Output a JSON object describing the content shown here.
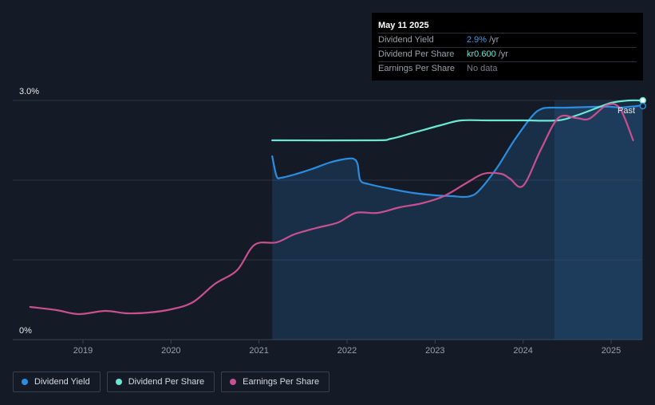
{
  "tooltip": {
    "date": "May 11 2025",
    "rows": [
      {
        "label": "Dividend Yield",
        "value": "2.9%",
        "unit": "/yr",
        "color": "#3a9bea"
      },
      {
        "label": "Dividend Per Share",
        "value": "kr0.600",
        "unit": "/yr",
        "color": "#6ee6d4"
      },
      {
        "label": "Earnings Per Share",
        "value": "No data",
        "unit": "",
        "color": "#7a7f88"
      }
    ]
  },
  "past_label": "Past",
  "legend": [
    {
      "label": "Dividend Yield",
      "color": "#2b8de0"
    },
    {
      "label": "Dividend Per Share",
      "color": "#6ee6d4"
    },
    {
      "label": "Earnings Per Share",
      "color": "#c8508f"
    }
  ],
  "chart_data": {
    "type": "line",
    "xlim": [
      2018.4,
      2025.4
    ],
    "ylim": [
      0,
      3.0
    ],
    "y_ticks": [
      {
        "value": 0,
        "label": "0%"
      },
      {
        "value": 3.0,
        "label": "3.0%"
      }
    ],
    "x_ticks": [
      2019,
      2020,
      2021,
      2022,
      2023,
      2024,
      2025
    ],
    "past_region_start": 2024.36,
    "series": [
      {
        "name": "Dividend Yield",
        "color": "#2b8de0",
        "fill": true,
        "x": [
          2021.15,
          2021.2,
          2021.25,
          2021.4,
          2021.6,
          2021.8,
          2021.95,
          2022.07,
          2022.12,
          2022.15,
          2022.25,
          2022.5,
          2022.75,
          2023.0,
          2023.2,
          2023.3,
          2023.4,
          2023.5,
          2023.7,
          2023.9,
          2024.1,
          2024.2,
          2024.3,
          2024.5,
          2024.8,
          2025.0,
          2025.1,
          2025.2,
          2025.3,
          2025.36
        ],
        "y": [
          2.3,
          2.05,
          2.03,
          2.07,
          2.14,
          2.22,
          2.26,
          2.27,
          2.2,
          2.0,
          1.95,
          1.89,
          1.84,
          1.81,
          1.8,
          1.79,
          1.8,
          1.87,
          2.15,
          2.5,
          2.8,
          2.89,
          2.91,
          2.91,
          2.92,
          2.92,
          2.91,
          2.92,
          2.93,
          2.95
        ]
      },
      {
        "name": "Dividend Per Share",
        "color": "#6ee6d4",
        "fill": false,
        "x": [
          2021.15,
          2022.3,
          2022.5,
          2022.8,
          2023.1,
          2023.3,
          2023.6,
          2024.0,
          2024.4,
          2024.6,
          2024.8,
          2025.0,
          2025.2,
          2025.36
        ],
        "y": [
          2.5,
          2.5,
          2.52,
          2.61,
          2.7,
          2.75,
          2.75,
          2.75,
          2.75,
          2.81,
          2.89,
          2.97,
          3.0,
          3.0
        ]
      },
      {
        "name": "Earnings Per Share",
        "color": "#c8508f",
        "fill": false,
        "x": [
          2018.4,
          2018.7,
          2018.95,
          2019.25,
          2019.5,
          2019.75,
          2020.0,
          2020.25,
          2020.5,
          2020.75,
          2020.95,
          2021.2,
          2021.4,
          2021.65,
          2021.9,
          2022.1,
          2022.35,
          2022.6,
          2022.85,
          2023.1,
          2023.35,
          2023.55,
          2023.75,
          2023.85,
          2024.0,
          2024.2,
          2024.4,
          2024.6,
          2024.75,
          2024.95,
          2025.1,
          2025.25
        ],
        "y": [
          0.41,
          0.37,
          0.32,
          0.36,
          0.33,
          0.34,
          0.38,
          0.47,
          0.7,
          0.87,
          1.19,
          1.22,
          1.32,
          1.4,
          1.47,
          1.59,
          1.59,
          1.66,
          1.71,
          1.8,
          1.96,
          2.08,
          2.08,
          2.02,
          1.93,
          2.38,
          2.78,
          2.78,
          2.77,
          2.94,
          2.9,
          2.5
        ]
      }
    ]
  }
}
